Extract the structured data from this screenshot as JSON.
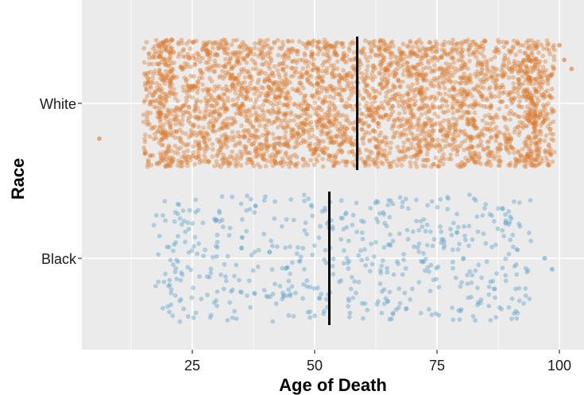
{
  "chart_data": {
    "type": "scatter",
    "title": "",
    "xlabel": "Age of Death",
    "ylabel": "Race",
    "xlim": [
      0,
      103.5
    ],
    "x_ticks": [
      25,
      50,
      75,
      100
    ],
    "x_tick_labels": [
      "25",
      "50",
      "75",
      "100"
    ],
    "categories": [
      "White",
      "Black"
    ],
    "grid": true,
    "legend": "none",
    "background_color": "#ebebeb",
    "grid_color": "#ffffff",
    "median_line_color": "#000000",
    "series": [
      {
        "category": "White",
        "color": "#d9782d",
        "point_count": 3500,
        "median": 58.7,
        "x_range": [
          18,
          96
        ],
        "outliers": [
          6,
          16,
          97,
          98,
          100,
          101,
          102.5
        ]
      },
      {
        "category": "Black",
        "color": "#5fa2c8",
        "point_count": 550,
        "median": 53,
        "x_range": [
          20,
          92
        ],
        "outliers": [
          97,
          98.5
        ]
      }
    ]
  }
}
